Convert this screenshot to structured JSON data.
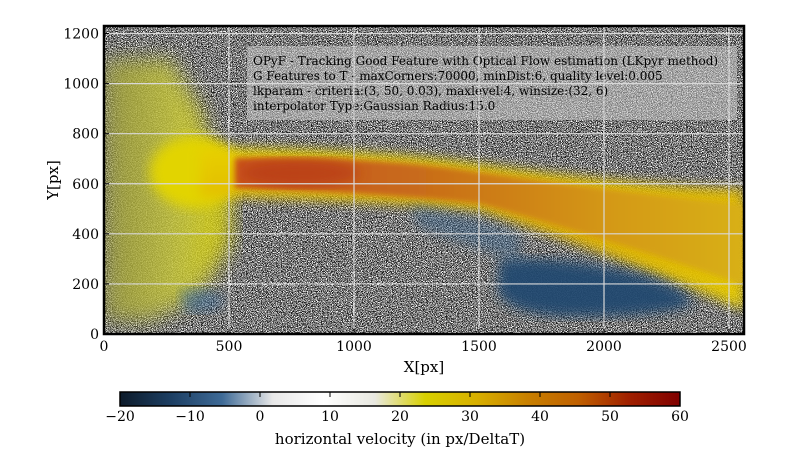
{
  "chart_data": {
    "type": "heatmap",
    "xlabel": "X[px]",
    "ylabel": "Y[px]",
    "xlim": [
      0,
      2560
    ],
    "ylim": [
      0,
      1230
    ],
    "x_ticks": [
      0,
      500,
      1000,
      1500,
      2000,
      2500
    ],
    "y_ticks": [
      0,
      200,
      400,
      600,
      800,
      1000,
      1200
    ],
    "grid": true,
    "annotation_lines": [
      "OPyF - Tracking Good Feature with Optical Flow estimation (LKpyr method)",
      "G Features to T - maxCorners:70000, minDist:6, quality level:0.005",
      "lkparam - criteria:(3, 50, 0.03), maxlevel:4, winsize:(32, 6)",
      "interpolator Type:Gaussian Radius:15.0"
    ],
    "colorbar": {
      "label": "horizontal velocity (in px/DeltaT)",
      "min": -20,
      "max": 60,
      "ticks": [
        "−20",
        "−10",
        "0",
        "10",
        "20",
        "30",
        "40",
        "50",
        "60"
      ],
      "colors": [
        "#0d1b2a",
        "#1d3f63",
        "#3e6a96",
        "#e8e8e8",
        "#ffffff",
        "#e8e8e0",
        "#d8d000",
        "#d8b000",
        "#c88000",
        "#c06000",
        "#a02000",
        "#800000"
      ]
    },
    "features": [
      {
        "name": "jet",
        "description": "high positive horizontal velocity band",
        "x_range": [
          500,
          2560
        ],
        "y_center": 620,
        "value_range": [
          25,
          50
        ]
      },
      {
        "name": "source-region",
        "x_range": [
          0,
          500
        ],
        "y_range": [
          100,
          1100
        ],
        "value_range": [
          5,
          20
        ]
      },
      {
        "name": "backflow",
        "x_range": [
          1570,
          2310
        ],
        "y_range": [
          80,
          320
        ],
        "value_range": [
          -15,
          -5
        ]
      }
    ]
  }
}
